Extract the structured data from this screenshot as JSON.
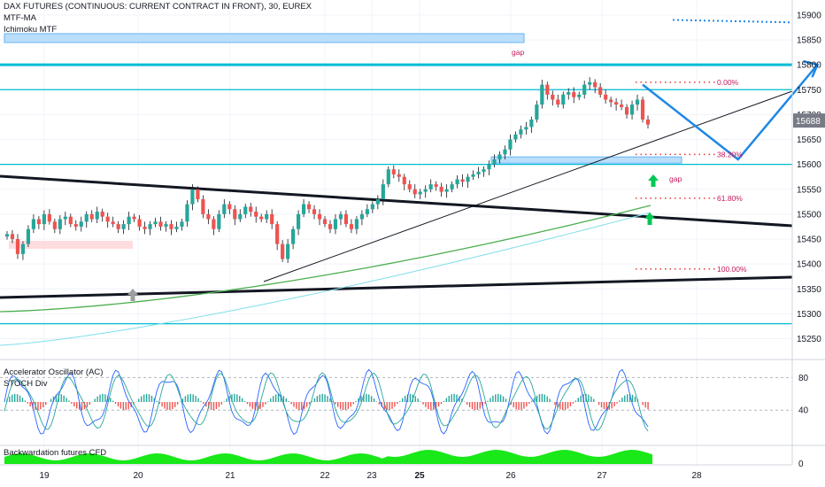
{
  "header": {
    "title": "DAX FUTURES (CONTINUOUS: CURRENT CONTRACT IN FRONT), 30, EUREX",
    "indicators": [
      "MTF-MA",
      "Ichimoku MTF"
    ]
  },
  "price_label": "15688",
  "oscillator_legends": [
    "Accelerator Oscillator (AC)",
    "STOCH Div"
  ],
  "backwardation_legend": "Backwardation futures CFD",
  "fib_levels": [
    "0.00%",
    "38.20%",
    "61.80%",
    "100.00%"
  ],
  "gap_labels": [
    "gap",
    "gap"
  ],
  "colors": {
    "up_candle": "#26a69a",
    "down_candle": "#ef5350",
    "wick": "#131722",
    "cyan_line": "#00bcd4",
    "trend_black": "#131722",
    "ma_green": "#4caf50",
    "forecast_blue": "#1e88e5",
    "fib_dots": "#e53935",
    "green_area": "#00e600"
  },
  "chart_data": {
    "type": "candlestick",
    "x_ticks": [
      "19",
      "20",
      "21",
      "22",
      "23",
      "25",
      "26",
      "27",
      "28"
    ],
    "y_ticks": [
      15250,
      15300,
      15350,
      15400,
      15450,
      15500,
      15550,
      15600,
      15650,
      15700,
      15750,
      15800,
      15850,
      15900
    ],
    "ylim": [
      15210,
      15930
    ],
    "oscillator_ticks": [
      80,
      40
    ],
    "oscillator2_ticks": [
      0
    ],
    "horizontal_levels": [
      15800,
      15750,
      15600,
      15280
    ],
    "forecast_path": [
      {
        "bar": 120,
        "price": 15760
      },
      {
        "bar": 138,
        "price": 15610
      },
      {
        "bar": 153,
        "price": 15800
      }
    ],
    "fib_retracement": [
      {
        "level": "0.00%",
        "price": 15765
      },
      {
        "level": "38.20%",
        "price": 15620
      },
      {
        "level": "61.80%",
        "price": 15532
      },
      {
        "level": "100.00%",
        "price": 15390
      }
    ],
    "close": [
      15460,
      15450,
      15420,
      15440,
      15470,
      15490,
      15480,
      15500,
      15485,
      15470,
      15490,
      15495,
      15480,
      15475,
      15485,
      15500,
      15490,
      15505,
      15495,
      15485,
      15480,
      15470,
      15480,
      15495,
      15490,
      15475,
      15470,
      15480,
      15485,
      15475,
      15480,
      15470,
      15475,
      15485,
      15520,
      15550,
      15530,
      15500,
      15490,
      15470,
      15500,
      15520,
      15510,
      15490,
      15500,
      15515,
      15505,
      15495,
      15490,
      15500,
      15480,
      15440,
      15410,
      15440,
      15470,
      15500,
      15520,
      15510,
      15500,
      15490,
      15480,
      15470,
      15490,
      15500,
      15480,
      15470,
      15490,
      15500,
      15510,
      15520,
      15530,
      15560,
      15590,
      15580,
      15575,
      15560,
      15550,
      15540,
      15545,
      15550,
      15560,
      15555,
      15545,
      15550,
      15560,
      15570,
      15565,
      15575,
      15580,
      15585,
      15590,
      15600,
      15610,
      15620,
      15630,
      15650,
      15660,
      15670,
      15675,
      15690,
      15720,
      15760,
      15740,
      15730,
      15720,
      15740,
      15745,
      15735,
      15740,
      15760,
      15765,
      15755,
      15740,
      15730,
      15725,
      15720,
      15715,
      15700,
      15720,
      15730,
      15690,
      15680
    ]
  }
}
